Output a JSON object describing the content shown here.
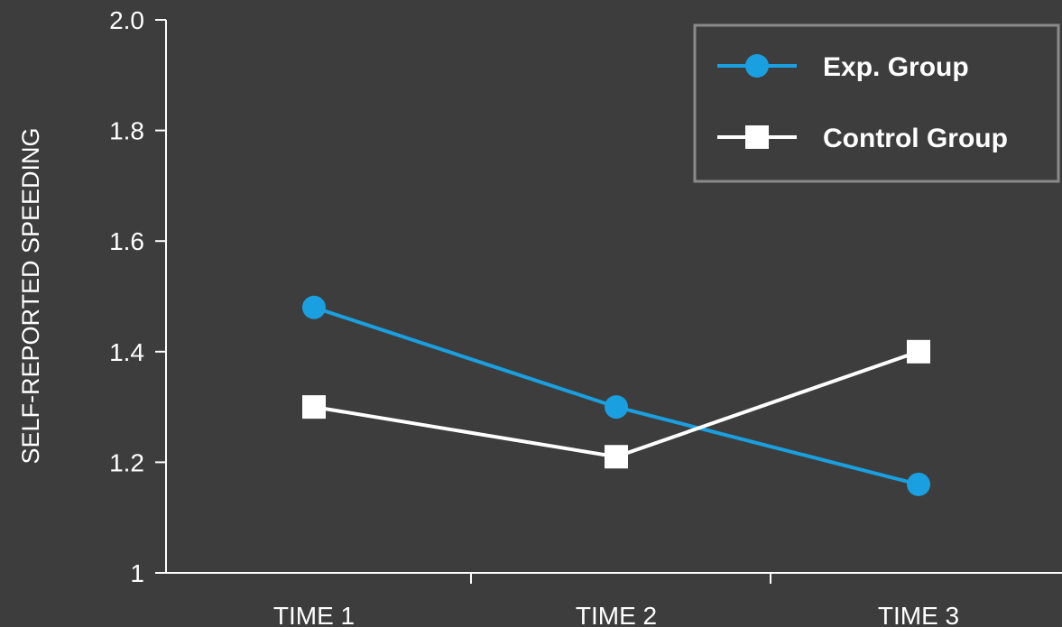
{
  "chart_data": {
    "type": "line",
    "title": "",
    "xlabel": "",
    "ylabel": "SELF-REPORTED SPEEDING",
    "categories": [
      "TIME 1",
      "TIME 2",
      "TIME 3"
    ],
    "ylim": [
      1.0,
      2.0
    ],
    "yticks": [
      "1",
      "1.2",
      "1.4",
      "1.6",
      "1.8",
      "2.0"
    ],
    "ytick_values": [
      1.0,
      1.2,
      1.4,
      1.6,
      1.8,
      2.0
    ],
    "grid": false,
    "legend_position": "top-right",
    "series": [
      {
        "name": "Exp. Group",
        "values": [
          1.48,
          1.3,
          1.16
        ],
        "color": "#1aa0e0",
        "marker": "circle"
      },
      {
        "name": "Control Group",
        "values": [
          1.3,
          1.21,
          1.4
        ],
        "color": "#ffffff",
        "marker": "square"
      }
    ]
  },
  "colors": {
    "background": "#3d3d3d",
    "axis": "#ffffff",
    "legend_border": "#8a8a8a"
  }
}
